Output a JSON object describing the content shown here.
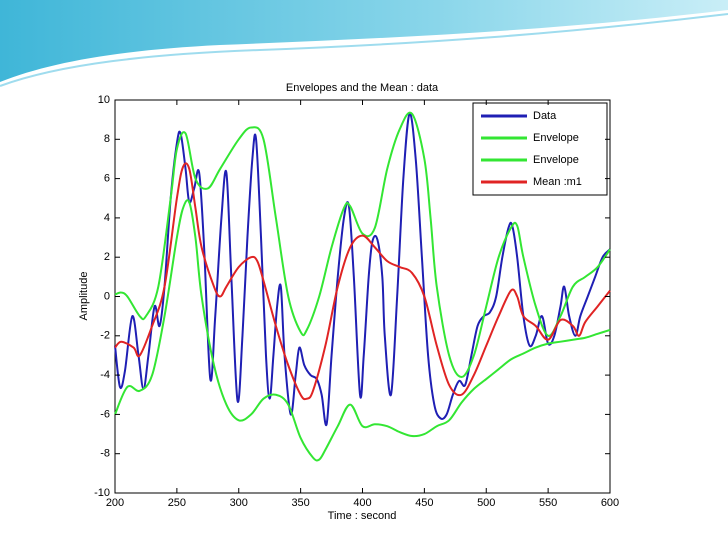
{
  "chart_data": {
    "type": "line",
    "title": "Envelopes and the Mean : data",
    "xlabel": "Time : second",
    "ylabel": "Amplitude",
    "xlim": [
      200,
      600
    ],
    "ylim": [
      -10,
      10
    ],
    "xticks": [
      200,
      250,
      300,
      350,
      400,
      450,
      500,
      550,
      600
    ],
    "yticks": [
      -10,
      -8,
      -6,
      -4,
      -2,
      0,
      2,
      4,
      6,
      8,
      10
    ],
    "grid": false,
    "legend": "upper right",
    "series": [
      {
        "name": "Data",
        "color": "#1f1fb4",
        "x": [
          200,
          204,
          208,
          214,
          219,
          223,
          227,
          232,
          236,
          240,
          245,
          250,
          253,
          257,
          260,
          264,
          268,
          272,
          277,
          281,
          286,
          290,
          294,
          299,
          303,
          307,
          311,
          314,
          318,
          322,
          325,
          328,
          331,
          334,
          337,
          342,
          346,
          349,
          353,
          358,
          363,
          367,
          371,
          375,
          380,
          385,
          389,
          393,
          398,
          401,
          405,
          408,
          412,
          416,
          418,
          423,
          428,
          433,
          438,
          443,
          448,
          453,
          458,
          463,
          468,
          473,
          478,
          483,
          488,
          493,
          498,
          503,
          508,
          513,
          518,
          521,
          525,
          530,
          535,
          540,
          545,
          550,
          555,
          560,
          563,
          567,
          572,
          576,
          582,
          588,
          594,
          600
        ],
        "values": [
          -2.5,
          -4.6,
          -3.8,
          -1,
          -3,
          -4.7,
          -3,
          -0.5,
          -1.5,
          0.5,
          5,
          7.8,
          8.3,
          6.5,
          4.8,
          5.5,
          6.3,
          2.5,
          -4.2,
          -1,
          4,
          6.3,
          1,
          -5.3,
          -2,
          3,
          7,
          8,
          3,
          -3,
          -5.2,
          -3,
          -0.5,
          0.5,
          -3,
          -6,
          -4,
          -2.6,
          -3.5,
          -4,
          -4.2,
          -5,
          -6.5,
          -3,
          1,
          4,
          4.6,
          1,
          -5,
          -3,
          1,
          2.8,
          2.9,
          1,
          -2,
          -5,
          0,
          6,
          9.3,
          7,
          2,
          -3,
          -5.5,
          -6.2,
          -6,
          -5,
          -4.3,
          -4.5,
          -3,
          -1.5,
          -1,
          -0.8,
          0,
          2,
          3.5,
          3.6,
          2,
          -1,
          -2.5,
          -2,
          -1,
          -2.4,
          -2,
          -0.5,
          0.5,
          -1,
          -2,
          -1,
          0,
          1,
          2,
          2.4
        ]
      },
      {
        "name": "Envelope",
        "color": "#33e633",
        "x": [
          200,
          205,
          210,
          220,
          225,
          235,
          245,
          250,
          257,
          265,
          275,
          285,
          300,
          310,
          320,
          330,
          340,
          350,
          355,
          365,
          375,
          385,
          390,
          400,
          410,
          420,
          430,
          440,
          450,
          455,
          460,
          470,
          480,
          490,
          500,
          510,
          520,
          525,
          530,
          540,
          550,
          560,
          570,
          580,
          590,
          600
        ],
        "values": [
          0.1,
          0.2,
          0,
          -1,
          -1,
          0.5,
          5,
          7.5,
          8.3,
          6,
          5.5,
          6.5,
          8,
          8.6,
          8,
          4,
          0,
          -1.8,
          -1.7,
          0,
          2.5,
          4.5,
          4.6,
          3.2,
          3.5,
          6.5,
          8.5,
          9.3,
          7,
          4,
          0.5,
          -3,
          -4.1,
          -3,
          -0.5,
          2,
          3.5,
          3.6,
          2,
          -0.5,
          -2,
          -1,
          0.5,
          1,
          1.5,
          2.4
        ]
      },
      {
        "name": "Envelope",
        "color": "#33e633",
        "x": [
          200,
          210,
          220,
          230,
          240,
          250,
          255,
          260,
          265,
          270,
          280,
          290,
          300,
          310,
          320,
          330,
          340,
          350,
          360,
          365,
          370,
          380,
          390,
          400,
          410,
          420,
          430,
          440,
          450,
          460,
          470,
          480,
          490,
          500,
          510,
          520,
          530,
          540,
          550,
          560,
          570,
          580,
          590,
          600
        ],
        "values": [
          -6,
          -4.6,
          -4.8,
          -4,
          -1,
          3,
          4.5,
          4.8,
          3,
          0,
          -3.5,
          -5.5,
          -6.3,
          -6,
          -5.2,
          -5,
          -5.5,
          -7.2,
          -8.2,
          -8.3,
          -7.8,
          -6.6,
          -5.5,
          -6.6,
          -6.5,
          -6.6,
          -6.9,
          -7.1,
          -7,
          -6.6,
          -6.3,
          -5.4,
          -4.7,
          -4.2,
          -3.7,
          -3.2,
          -2.9,
          -2.6,
          -2.4,
          -2.3,
          -2.2,
          -2.1,
          -1.9,
          -1.7
        ]
      },
      {
        "name": "Mean :m1",
        "color": "#e02424",
        "x": [
          200,
          205,
          215,
          220,
          230,
          240,
          250,
          255,
          260,
          265,
          270,
          280,
          285,
          290,
          300,
          310,
          315,
          320,
          330,
          340,
          350,
          355,
          360,
          370,
          380,
          390,
          400,
          410,
          420,
          430,
          440,
          450,
          460,
          470,
          480,
          490,
          500,
          510,
          520,
          525,
          530,
          540,
          550,
          560,
          570,
          575,
          580,
          590,
          600
        ],
        "values": [
          -2.6,
          -2.3,
          -2.6,
          -3,
          -1.5,
          0.5,
          5,
          6.6,
          6.5,
          4.5,
          2.5,
          0.5,
          0,
          0.5,
          1.5,
          2,
          1.8,
          0.8,
          -1.5,
          -3.5,
          -5,
          -5.2,
          -4.8,
          -2.5,
          0.5,
          2.5,
          3.1,
          2.5,
          1.8,
          1.5,
          1.2,
          0,
          -2.5,
          -4.5,
          -5,
          -4,
          -2.5,
          -1,
          0.3,
          0,
          -1,
          -1.5,
          -2.2,
          -1.2,
          -1.5,
          -2,
          -1.3,
          -0.5,
          0.3
        ]
      }
    ]
  }
}
